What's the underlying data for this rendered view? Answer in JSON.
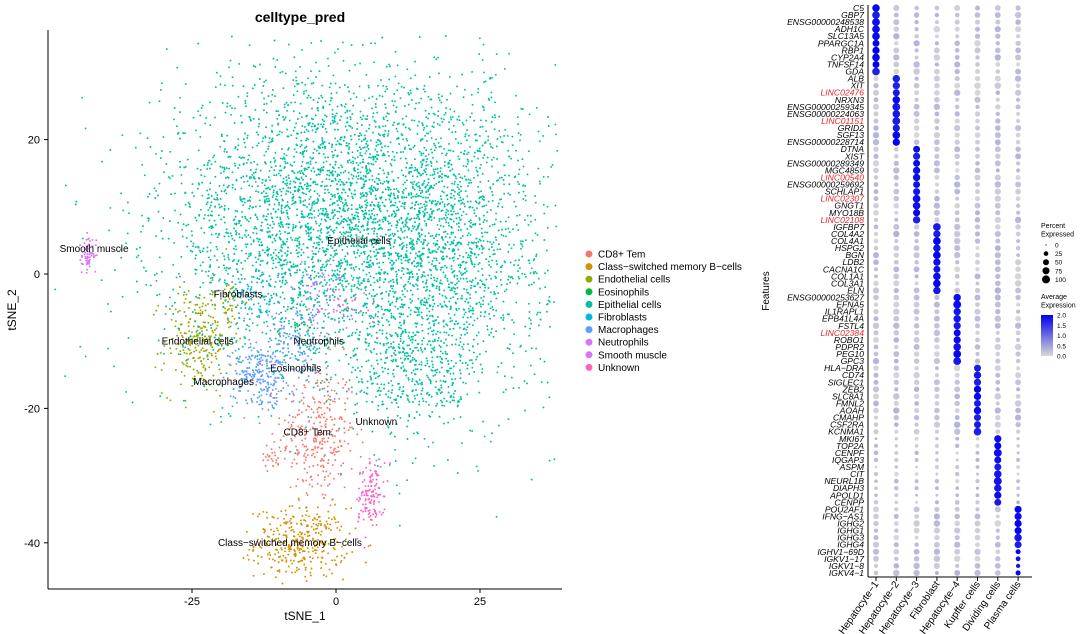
{
  "chart_data": [
    {
      "type": "scatter",
      "title": "celltype_pred",
      "xlabel": "tSNE_1",
      "ylabel": "tSNE_2",
      "xticks": [
        -25,
        0,
        25
      ],
      "yticks": [
        20,
        0,
        -20,
        -40
      ],
      "xlim": [
        -50,
        38
      ],
      "ylim": [
        -45,
        35
      ],
      "grid": false,
      "legend_position": "right",
      "series": [
        {
          "name": "CD8+ Tem",
          "color": "#F8766D",
          "label": "CD8+ Tem",
          "clusters": [
            {
              "x": -3,
              "y": -24,
              "sx": 3.2,
              "sy": 5.5,
              "n": 300
            },
            {
              "x": -11,
              "y": -27,
              "sx": 1.2,
              "sy": 1.0,
              "n": 25
            }
          ]
        },
        {
          "name": "Class−switched memory B−cells",
          "color": "#D39200",
          "label": "Class−switched memory B−cells",
          "clusters": [
            {
              "x": -6,
              "y": -40,
              "sx": 4.0,
              "sy": 2.6,
              "n": 340
            }
          ]
        },
        {
          "name": "Endothelial cells",
          "color": "#93AA00",
          "label": "Endothelial cells",
          "clusters": [
            {
              "x": -24,
              "y": -10,
              "sx": 3.0,
              "sy": 4.0,
              "n": 260
            },
            {
              "x": -19,
              "y": -4,
              "sx": 1.5,
              "sy": 1.5,
              "n": 40
            }
          ]
        },
        {
          "name": "Eosinophils",
          "color": "#00BA38",
          "label": "Eosinophils",
          "clusters": [
            {
              "x": -6,
              "y": -8,
              "sx": 1.5,
              "sy": 2.0,
              "n": 30
            }
          ]
        },
        {
          "name": "Epithelial cells",
          "color": "#00C19F",
          "label": "Epithelial cells",
          "clusters": [
            {
              "x": -2,
              "y": 8,
              "sx": 14,
              "sy": 11,
              "n": 3200
            },
            {
              "x": 18,
              "y": 5,
              "sx": 10,
              "sy": 12,
              "n": 1600
            },
            {
              "x": 14,
              "y": -14,
              "sx": 5,
              "sy": 5,
              "n": 350
            }
          ]
        },
        {
          "name": "Fibroblasts",
          "color": "#00B9E3",
          "label": "Fibroblasts",
          "clusters": [
            {
              "x": -14,
              "y": -4,
              "sx": 2.0,
              "sy": 2.5,
              "n": 60
            }
          ]
        },
        {
          "name": "Macrophages",
          "color": "#619CFF",
          "label": "Macrophages",
          "clusters": [
            {
              "x": -13,
              "y": -15,
              "sx": 2.5,
              "sy": 2.5,
              "n": 230
            },
            {
              "x": -7,
              "y": -10,
              "sx": 2.5,
              "sy": 3.0,
              "n": 140
            }
          ]
        },
        {
          "name": "Neutrophils",
          "color": "#DB72FB",
          "label": "Neutrophils",
          "clusters": [
            {
              "x": -2,
              "y": -4,
              "sx": 2.5,
              "sy": 2.5,
              "n": 60
            },
            {
              "x": -43,
              "y": 3,
              "sx": 0.7,
              "sy": 1.5,
              "n": 45
            }
          ]
        },
        {
          "name": "Smooth muscle",
          "color": "#D575FE",
          "label": "Smooth muscle",
          "clusters": [
            {
              "x": -43,
              "y": 2.5,
              "sx": 0.6,
              "sy": 1.2,
              "n": 20
            }
          ]
        },
        {
          "name": "Unknown",
          "color": "#FF61C3",
          "label": "Unknown",
          "clusters": [
            {
              "x": 6,
              "y": -33,
              "sx": 1.2,
              "sy": 2.5,
              "n": 130
            },
            {
              "x": 4,
              "y": -5,
              "sx": 2.0,
              "sy": 2.0,
              "n": 20
            }
          ]
        }
      ],
      "cluster_labels": [
        {
          "text": "Smooth muscle",
          "x": -42,
          "y": 3.3
        },
        {
          "text": "Epithelial cells",
          "x": 4,
          "y": 4.5
        },
        {
          "text": "Fibroblasts",
          "x": -17,
          "y": -3.5
        },
        {
          "text": "Endothelial cells",
          "x": -24,
          "y": -10.5
        },
        {
          "text": "Neutrophils",
          "x": -3,
          "y": -10.5
        },
        {
          "text": "Eosinophils",
          "x": -7,
          "y": -14.5
        },
        {
          "text": "Macrophages",
          "x": -19.5,
          "y": -16.5
        },
        {
          "text": "Unknown",
          "x": 7,
          "y": -22.5
        },
        {
          "text": "CD8+ Tem",
          "x": -5,
          "y": -24
        },
        {
          "text": "Class−switched memory B−cells",
          "x": -8,
          "y": -40.5
        }
      ]
    },
    {
      "type": "dot",
      "xlabel": "",
      "ylabel": "Features",
      "categories": [
        "Hepatocyte−1",
        "Hepatocyte−2",
        "Hepatocyte−3",
        "Fibroblast",
        "Hepatocyte−4",
        "Kupffer cells",
        "Dividing cells",
        "Plasma cells"
      ],
      "features": [
        {
          "name": "C5",
          "group": 0,
          "red": false
        },
        {
          "name": "GBP7",
          "group": 0,
          "red": false
        },
        {
          "name": "ENSG00000248538",
          "group": 0,
          "red": false
        },
        {
          "name": "ADH1C",
          "group": 0,
          "red": false
        },
        {
          "name": "SLC13A5",
          "group": 0,
          "red": false
        },
        {
          "name": "PPARGC1A",
          "group": 0,
          "red": false
        },
        {
          "name": "RBP1",
          "group": 0,
          "red": false
        },
        {
          "name": "CYP2A4",
          "group": 0,
          "red": false
        },
        {
          "name": "TNFSF14",
          "group": 0,
          "red": false
        },
        {
          "name": "GDA",
          "group": 0,
          "red": false
        },
        {
          "name": "ALB",
          "group": 1,
          "red": false
        },
        {
          "name": "XIT",
          "group": 1,
          "red": false
        },
        {
          "name": "LINC02476",
          "group": 1,
          "red": true
        },
        {
          "name": "NRXN3",
          "group": 1,
          "red": false
        },
        {
          "name": "ENSG00000259345",
          "group": 1,
          "red": false
        },
        {
          "name": "ENSG00000224063",
          "group": 1,
          "red": false
        },
        {
          "name": "LINC01151",
          "group": 1,
          "red": true
        },
        {
          "name": "GRID2",
          "group": 1,
          "red": false
        },
        {
          "name": "SGF13",
          "group": 1,
          "red": false
        },
        {
          "name": "ENSG00000228714",
          "group": 1,
          "red": false
        },
        {
          "name": "DTNA",
          "group": 2,
          "red": false
        },
        {
          "name": "XIST",
          "group": 2,
          "red": false
        },
        {
          "name": "ENSG00000289349",
          "group": 2,
          "red": false
        },
        {
          "name": "MGC4859",
          "group": 2,
          "red": false
        },
        {
          "name": "LINC00540",
          "group": 2,
          "red": true
        },
        {
          "name": "ENSG00000259692",
          "group": 2,
          "red": false
        },
        {
          "name": "SCHLAP1",
          "group": 2,
          "red": false
        },
        {
          "name": "LINC02307",
          "group": 2,
          "red": true
        },
        {
          "name": "GNGT1",
          "group": 2,
          "red": false
        },
        {
          "name": "MYO18B",
          "group": 2,
          "red": false
        },
        {
          "name": "LINC02108",
          "group": 2,
          "red": true
        },
        {
          "name": "IGFBP7",
          "group": 3,
          "red": false
        },
        {
          "name": "COL4A2",
          "group": 3,
          "red": false
        },
        {
          "name": "COL4A1",
          "group": 3,
          "red": false
        },
        {
          "name": "HSPG2",
          "group": 3,
          "red": false
        },
        {
          "name": "BGN",
          "group": 3,
          "red": false
        },
        {
          "name": "LDB2",
          "group": 3,
          "red": false
        },
        {
          "name": "CACNA1C",
          "group": 3,
          "red": false
        },
        {
          "name": "COL1A1",
          "group": 3,
          "red": false
        },
        {
          "name": "COL3A1",
          "group": 3,
          "red": false
        },
        {
          "name": "ELN",
          "group": 3,
          "red": false
        },
        {
          "name": "ENSG00000253627",
          "group": 4,
          "red": false
        },
        {
          "name": "EFNA5",
          "group": 4,
          "red": false
        },
        {
          "name": "IL1RAPL1",
          "group": 4,
          "red": false
        },
        {
          "name": "EPB41L4A",
          "group": 4,
          "red": false
        },
        {
          "name": "FSTL4",
          "group": 4,
          "red": false
        },
        {
          "name": "LINC02384",
          "group": 4,
          "red": true
        },
        {
          "name": "ROBO1",
          "group": 4,
          "red": false
        },
        {
          "name": "PDPR2",
          "group": 4,
          "red": false
        },
        {
          "name": "PEG10",
          "group": 4,
          "red": false
        },
        {
          "name": "GPC3",
          "group": 4,
          "red": false
        },
        {
          "name": "HLA−DRA",
          "group": 5,
          "red": false
        },
        {
          "name": "CD74",
          "group": 5,
          "red": false
        },
        {
          "name": "SIGLEC1",
          "group": 5,
          "red": false
        },
        {
          "name": "ZEB2",
          "group": 5,
          "red": false
        },
        {
          "name": "SLC8A1",
          "group": 5,
          "red": false
        },
        {
          "name": "FMNL2",
          "group": 5,
          "red": false
        },
        {
          "name": "AOAH",
          "group": 5,
          "red": false
        },
        {
          "name": "CMAHP",
          "group": 5,
          "red": false
        },
        {
          "name": "CSF2RA",
          "group": 5,
          "red": false
        },
        {
          "name": "KCNMA1",
          "group": 5,
          "red": false
        },
        {
          "name": "MKI67",
          "group": 6,
          "red": false
        },
        {
          "name": "TOP2A",
          "group": 6,
          "red": false
        },
        {
          "name": "CENPF",
          "group": 6,
          "red": false
        },
        {
          "name": "IQGAP3",
          "group": 6,
          "red": false
        },
        {
          "name": "ASPM",
          "group": 6,
          "red": false
        },
        {
          "name": "CIT",
          "group": 6,
          "red": false
        },
        {
          "name": "NEURL1B",
          "group": 6,
          "red": false
        },
        {
          "name": "DIAPH3",
          "group": 6,
          "red": false
        },
        {
          "name": "APOLD1",
          "group": 6,
          "red": false
        },
        {
          "name": "CENPP",
          "group": 6,
          "red": false
        },
        {
          "name": "POU2AF1",
          "group": 7,
          "red": false
        },
        {
          "name": "IFNG−AS1",
          "group": 7,
          "red": false
        },
        {
          "name": "IGHG2",
          "group": 7,
          "red": false
        },
        {
          "name": "IGHG1",
          "group": 7,
          "red": false
        },
        {
          "name": "IGHG3",
          "group": 7,
          "red": false
        },
        {
          "name": "IGHG4",
          "group": 7,
          "red": false
        },
        {
          "name": "IGHV1−69D",
          "group": 7,
          "red": false
        },
        {
          "name": "IGKV1−17",
          "group": 7,
          "red": false
        },
        {
          "name": "IGKV1−8",
          "group": 7,
          "red": false
        },
        {
          "name": "IGKV4−1",
          "group": 7,
          "red": false
        }
      ],
      "expression_range": [
        0,
        2.0
      ],
      "percent_range": [
        0,
        100
      ],
      "high_color": "#0000EE",
      "low_color": "#D8D8D8",
      "size_legend": {
        "title": [
          "Percent",
          "Expressed"
        ],
        "values": [
          0,
          25,
          50,
          75,
          100
        ]
      },
      "color_legend": {
        "title": [
          "Average",
          "Expression"
        ],
        "ticks": [
          "2.0",
          "1.5",
          "1.0",
          "0.5",
          "0.0"
        ]
      }
    }
  ]
}
